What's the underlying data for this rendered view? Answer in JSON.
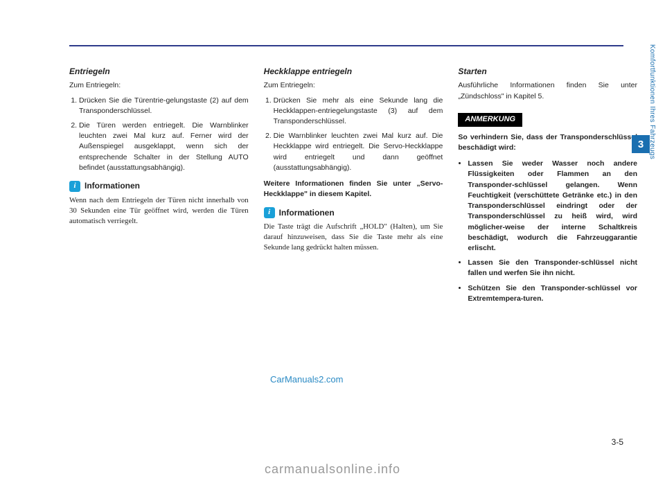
{
  "colors": {
    "accent": "#2e3a8a",
    "tab_bg": "#1a6fb0",
    "info_icon_bg": "#1aa0d8",
    "watermark1": "#2a8ac4",
    "watermark2": "#999999",
    "text": "#222222",
    "anmerkung_bg": "#000000"
  },
  "side": {
    "tab_number": "3",
    "label": "Komfortfunktionen Ihres Fahrzeugs"
  },
  "page_number": "3-5",
  "watermark1": "CarManuals2.com",
  "watermark2": "carmanualsonline.info",
  "col1": {
    "h1": "Entriegeln",
    "intro": "Zum Entriegeln:",
    "li1": "Drücken Sie die Türentrie-gelungstaste (2) auf dem Transponderschlüssel.",
    "li2": "Die Türen werden entriegelt. Die Warnblinker leuchten zwei Mal kurz auf. Ferner wird der Außenspiegel ausgeklappt, wenn sich der entsprechende Schalter in der Stellung AUTO befindet (ausstattungsabhängig).",
    "info_title": "Informationen",
    "info_text": "Wenn nach dem Entriegeln der Türen nicht innerhalb von 30  Sekunden eine Tür geöffnet wird, werden die Türen automatisch verriegelt."
  },
  "col2": {
    "h1": "Heckklappe entriegeln",
    "intro": "Zum Entriegeln:",
    "li1": "Drücken Sie mehr als eine Sekunde lang die Heckklappen-entriegelungstaste (3) auf dem Transponderschlüssel.",
    "li2": "Die Warnblinker leuchten zwei Mal kurz auf. Die Heckklappe wird entriegelt. Die Servo-Heckklappe wird entriegelt und dann geöffnet (ausstattungsabhängig).",
    "bold_block": "Weitere Informationen finden Sie unter „Servo-Heckklappe\" in diesem Kapitel.",
    "info_title": "Informationen",
    "info_text": "Die Taste trägt die Aufschrift „HOLD\" (Halten), um Sie darauf hinzuweisen, dass Sie die Taste mehr als eine Sekunde lang gedrückt halten müssen."
  },
  "col3": {
    "h1": "Starten",
    "intro": "Ausführliche Informationen finden Sie unter „Zündschloss\" in Kapitel 5.",
    "anmerkung_label": "ANMERKUNG",
    "bold_intro": "So verhindern Sie, dass der Transponderschlüssel beschädigt wird:",
    "b1": "Lassen Sie weder Wasser noch andere Flüssigkeiten oder Flammen an den Transponder-schlüssel gelangen. Wenn Feuchtigkeit (verschüttete Getränke etc.) in den Transponderschlüssel eindringt oder der Transponderschlüssel zu heiß wird, wird möglicher-weise der interne Schaltkreis beschädigt, wodurch die Fahrzeuggarantie erlischt.",
    "b2": "Lassen Sie den Transponder-schlüssel nicht fallen und werfen Sie ihn nicht.",
    "b3": "Schützen Sie den Transponder-schlüssel vor Extremtempera-turen."
  }
}
